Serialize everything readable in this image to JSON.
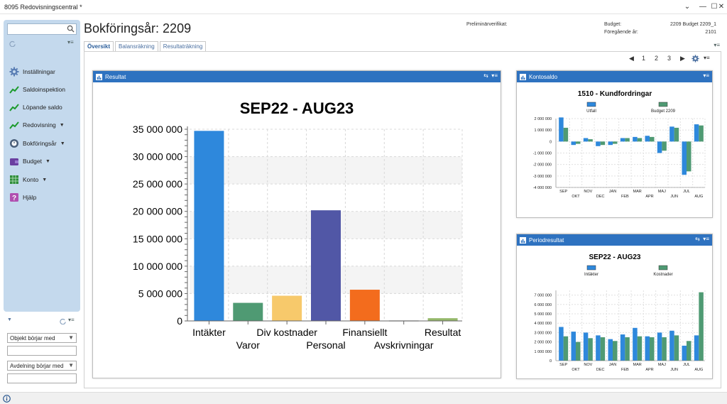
{
  "window": {
    "title": "8095 Redovisningscentral *"
  },
  "sidebar": {
    "items": [
      {
        "label": "Inställningar",
        "caret": false,
        "icon": "gear-icon"
      },
      {
        "label": "Saldoinspektion",
        "caret": false,
        "icon": "trend-icon"
      },
      {
        "label": "Löpande saldo",
        "caret": false,
        "icon": "trend-icon"
      },
      {
        "label": "Redovisning",
        "caret": true,
        "icon": "trend-icon"
      },
      {
        "label": "Bokföringsår",
        "caret": true,
        "icon": "calendar-icon"
      },
      {
        "label": "Budget",
        "caret": true,
        "icon": "wallet-icon"
      },
      {
        "label": "Konto",
        "caret": true,
        "icon": "grid-icon"
      },
      {
        "label": "Hjälp",
        "caret": false,
        "icon": "help-icon"
      }
    ]
  },
  "filters": {
    "objekt_label": "Objekt börjar med",
    "avdelning_label": "Avdelning börjar med"
  },
  "header": {
    "title": "Bokföringsår: 2209",
    "prelim_label": "Preliminärverifikat:",
    "budget_label": "Budget:",
    "budget_value": "2209 Budget 2209_1",
    "prev_year_label": "Föregående år:",
    "prev_year_value": "2101"
  },
  "tabs": [
    {
      "label": "Översikt",
      "active": true
    },
    {
      "label": "Balansräkning",
      "active": false
    },
    {
      "label": "Resultaträkning",
      "active": false
    }
  ],
  "pager": {
    "pages": [
      "1",
      "2",
      "3"
    ]
  },
  "panels": {
    "resultat": {
      "title": "Resultat"
    },
    "kontosaldo": {
      "title": "Kontosaldo"
    },
    "periodresultat": {
      "title": "Periodresultat"
    }
  },
  "chart_data": [
    {
      "type": "bar",
      "title": "SEP22 - AUG23",
      "categories": [
        "Intäkter",
        "Varor",
        "Div kostnader",
        "Personal",
        "Finansiellt",
        "Avskrivningar",
        "Resultat"
      ],
      "values": [
        34700000,
        3300000,
        4600000,
        20200000,
        5700000,
        100000,
        500000
      ],
      "colors": [
        "#2e88dc",
        "#4f9a73",
        "#f7c96b",
        "#5157a6",
        "#f36c1d",
        "#bfbfbf",
        "#95b86a"
      ],
      "yticks": [
        "0",
        "5 000 000",
        "10 000 000",
        "15 000 000",
        "20 000 000",
        "25 000 000",
        "30 000 000",
        "35 000 000"
      ],
      "ylim": [
        0,
        35000000
      ],
      "grid": true
    },
    {
      "type": "bar",
      "title": "1510  - Kundfordringar",
      "legend": [
        "Utfall",
        "Budget 2209"
      ],
      "colors": [
        "#2e88dc",
        "#4f9a73"
      ],
      "categories": [
        "SEP",
        "OKT",
        "NOV",
        "DEC",
        "JAN",
        "FEB",
        "MAR",
        "APR",
        "MAJ",
        "JUN",
        "JUL",
        "AUG"
      ],
      "series": [
        {
          "name": "Utfall",
          "values": [
            2100000,
            -300000,
            300000,
            -400000,
            -300000,
            300000,
            400000,
            500000,
            -1000000,
            1300000,
            -2900000,
            1500000
          ]
        },
        {
          "name": "Budget 2209",
          "values": [
            1200000,
            -200000,
            200000,
            -300000,
            -200000,
            300000,
            300000,
            400000,
            -800000,
            1200000,
            -2600000,
            1400000
          ]
        }
      ],
      "yticks": [
        "-4 000 000",
        "-3 000 000",
        "-2 000 000",
        "-1 000 000",
        "0",
        "1 000 000",
        "2 000 000"
      ],
      "ylim": [
        -4000000,
        2000000
      ],
      "grid": true
    },
    {
      "type": "bar",
      "title": "SEP22 - AUG23",
      "legend": [
        "Intäkter",
        "Kostnader"
      ],
      "colors": [
        "#2e88dc",
        "#4f9a73"
      ],
      "categories": [
        "SEP",
        "OKT",
        "NOV",
        "DEC",
        "JAN",
        "FEB",
        "MAR",
        "APR",
        "MAJ",
        "JUN",
        "JUL",
        "AUG"
      ],
      "series": [
        {
          "name": "Intäkter",
          "values": [
            3600000,
            3100000,
            3000000,
            2700000,
            2300000,
            2800000,
            3500000,
            2600000,
            3000000,
            3200000,
            1600000,
            2700000
          ]
        },
        {
          "name": "Kostnader",
          "values": [
            2600000,
            2000000,
            2400000,
            2500000,
            2100000,
            2500000,
            2600000,
            2500000,
            2500000,
            2700000,
            2100000,
            7300000
          ]
        }
      ],
      "yticks": [
        "0",
        "1 000 000",
        "2 000 000",
        "3 000 000",
        "4 000 000",
        "5 000 000",
        "6 000 000",
        "7 000 000"
      ],
      "ylim": [
        0,
        7500000
      ],
      "grid": true
    }
  ]
}
